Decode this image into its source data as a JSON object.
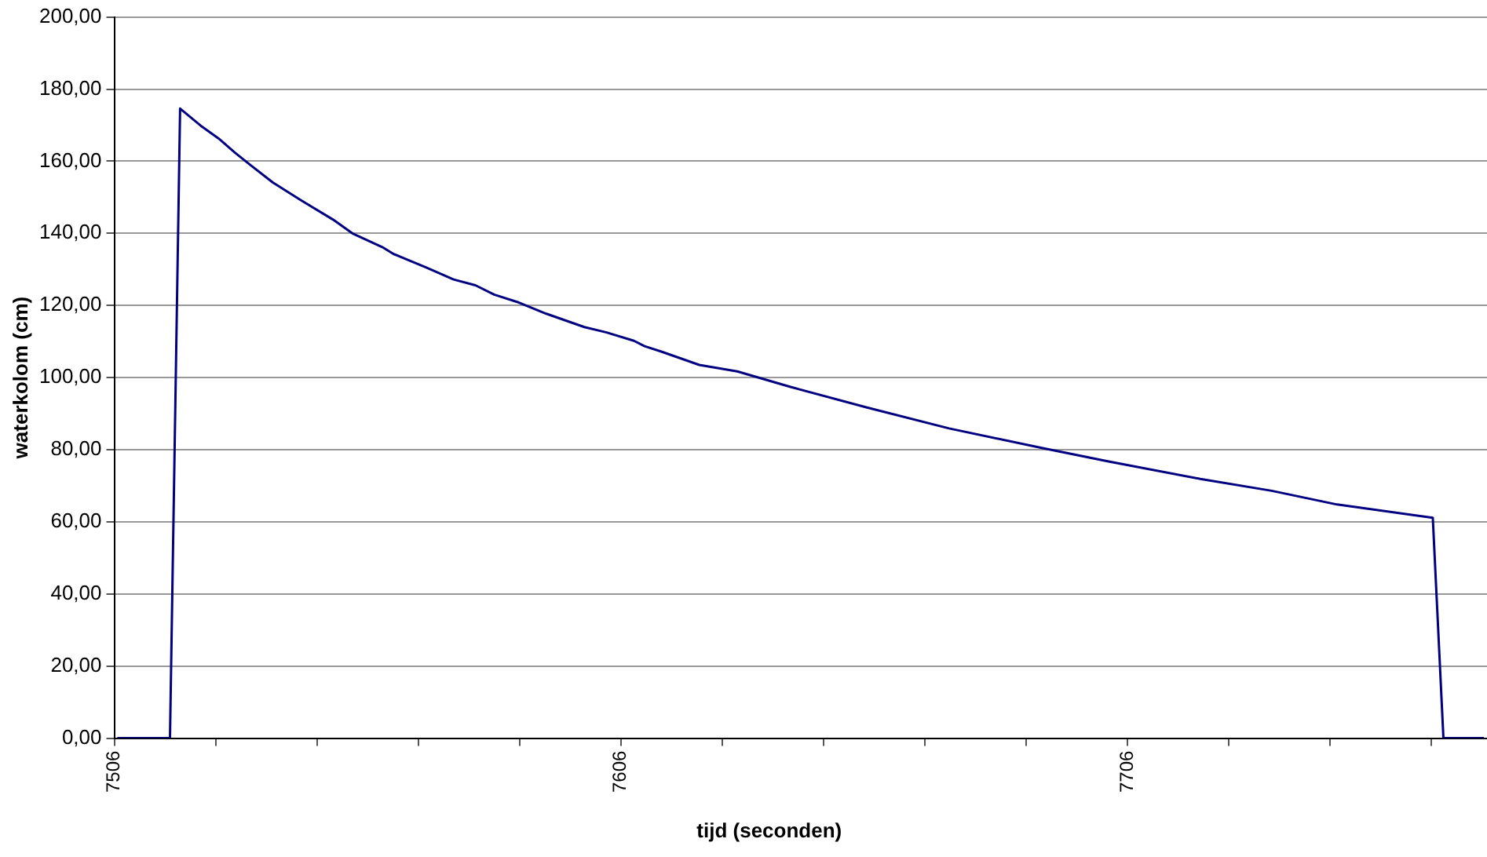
{
  "chart_data": {
    "type": "line",
    "xlabel": "tijd (seconden)",
    "ylabel": "waterkolom (cm)",
    "x": [
      7506.6,
      7517,
      7519,
      7523.3,
      7526.6,
      7529.8,
      7533.0,
      7537.3,
      7542.7,
      7549.2,
      7553.0,
      7558.9,
      7561.1,
      7567.6,
      7573.0,
      7577.3,
      7581.0,
      7585.9,
      7591.3,
      7598.8,
      7603.2,
      7608.6,
      7610.7,
      7614,
      7621.5,
      7629,
      7639.5,
      7654.6,
      7670.8,
      7689.1,
      7702.1,
      7720.4,
      7734.5,
      7747.4,
      7766.3,
      7768.4,
      7776.4
    ],
    "series": [
      {
        "color": "#000080",
        "values": [
          0,
          0,
          174.6,
          169.6,
          166.3,
          162.4,
          158.8,
          154.1,
          149.3,
          143.8,
          140.0,
          136.2,
          134.3,
          130.5,
          127.2,
          125.6,
          123.0,
          120.8,
          117.7,
          114.0,
          112.5,
          110.2,
          108.7,
          107.2,
          103.5,
          101.7,
          97.4,
          91.7,
          85.9,
          80.5,
          76.8,
          71.9,
          68.6,
          64.8,
          61.1,
          0,
          0
        ]
      }
    ],
    "xlim": [
      7506,
      7777
    ],
    "xticks": [
      7506,
      {
        "value": 7526,
        "label": null
      },
      {
        "value": 7546,
        "label": null
      },
      {
        "value": 7566,
        "label": null
      },
      {
        "value": 7586,
        "label": null
      },
      7606,
      {
        "value": 7626,
        "label": null
      },
      {
        "value": 7646,
        "label": null
      },
      {
        "value": 7666,
        "label": null
      },
      {
        "value": 7686,
        "label": null
      },
      7706,
      {
        "value": 7726,
        "label": null
      },
      {
        "value": 7746,
        "label": null
      },
      {
        "value": 7766,
        "label": null
      }
    ],
    "ylim": [
      0,
      200
    ],
    "yticks": [
      {
        "value": 0,
        "label": "0,00"
      },
      {
        "value": 20,
        "label": "20,00"
      },
      {
        "value": 40,
        "label": "40,00"
      },
      {
        "value": 60,
        "label": "60,00"
      },
      {
        "value": 80,
        "label": "80,00"
      },
      {
        "value": 100,
        "label": "100,00"
      },
      {
        "value": 120,
        "label": "120,00"
      },
      {
        "value": 140,
        "label": "140,00"
      },
      {
        "value": 160,
        "label": "160,00"
      },
      {
        "value": 180,
        "label": "180,00"
      },
      {
        "value": 200,
        "label": "200,00"
      }
    ],
    "grid": "y",
    "marker": "none",
    "line_style": "solid",
    "legend": false
  }
}
